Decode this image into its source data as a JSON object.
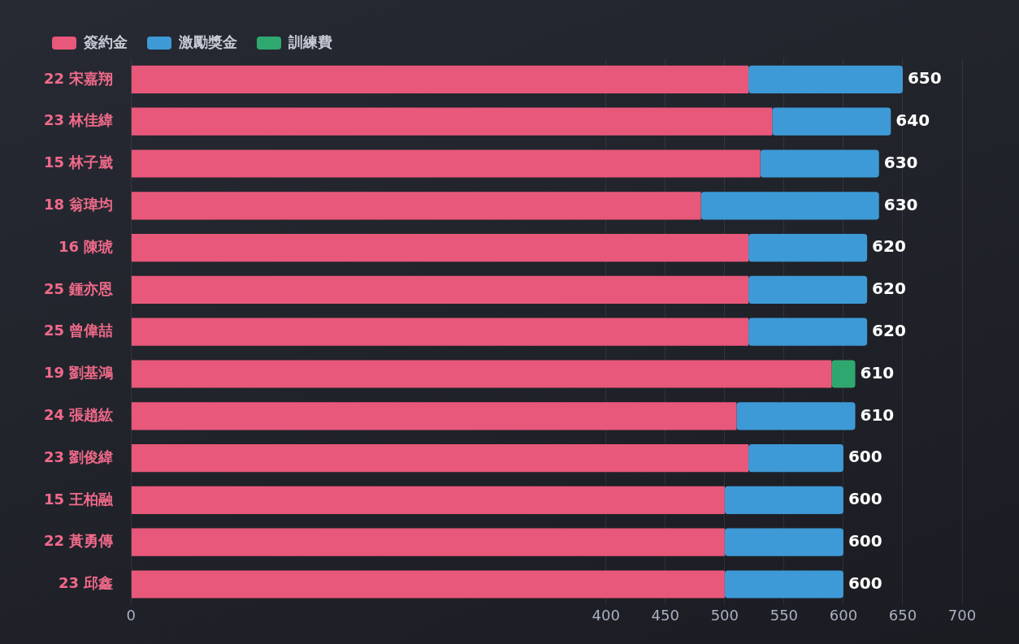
{
  "chart_data": {
    "type": "bar",
    "orientation": "horizontal",
    "stacked": true,
    "categories": [
      "22 宋嘉翔",
      "23 林佳緯",
      "15 林子崴",
      "18 翁瑋均",
      "16 陳琥",
      "25 鍾亦恩",
      "25 曾偉喆",
      "19 劉基鴻",
      "24 張趙紘",
      "23 劉俊緯",
      "15 王柏融",
      "22 黃勇傳",
      "23 邱鑫"
    ],
    "series": [
      {
        "name": "簽約金",
        "color": "#e8587a",
        "values": [
          520,
          540,
          530,
          480,
          520,
          520,
          520,
          590,
          510,
          520,
          500,
          500,
          500
        ]
      },
      {
        "name": "激勵獎金",
        "color": "#3d9ad6",
        "values": [
          130,
          100,
          100,
          150,
          100,
          100,
          100,
          null,
          100,
          80,
          100,
          100,
          100
        ]
      },
      {
        "name": "訓練費",
        "color": "#2fa870",
        "values": [
          null,
          null,
          null,
          null,
          null,
          null,
          null,
          20,
          null,
          null,
          null,
          null,
          null
        ]
      }
    ],
    "totals": [
      "650",
      "640",
      "630",
      "630",
      "620",
      "620",
      "620",
      "610",
      "610",
      "600",
      "600",
      "600",
      "600"
    ],
    "xlim": [
      0,
      700
    ],
    "xticks": [
      0,
      400,
      450,
      500,
      550,
      600,
      650,
      700
    ],
    "grid": "x",
    "legend": "top left"
  }
}
